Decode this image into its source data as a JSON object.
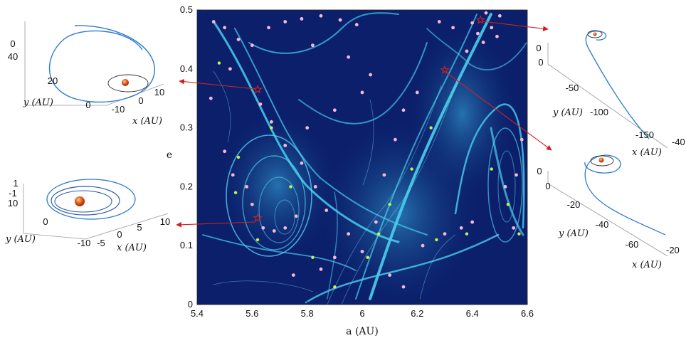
{
  "chart_data": [
    {
      "type": "heatmap",
      "xlabel": "a (AU)",
      "ylabel": "e",
      "xlim": [
        5.4,
        6.6
      ],
      "ylim": [
        0,
        0.5
      ],
      "xticks": [
        "5.4",
        "5.6",
        "5.8",
        "6",
        "6.2",
        "6.4",
        "6.6"
      ],
      "yticks": [
        "0",
        "0.1",
        "0.2",
        "0.3",
        "0.4",
        "0.5"
      ],
      "grid": false,
      "colors": {
        "background": "#0b1f6b",
        "ridge": "#4fd6f0",
        "pink_points": "#f6b8d6",
        "green_points": "#c6f24a",
        "arrows": "#d42020"
      },
      "highlighted_orbits": [
        {
          "a": 5.62,
          "e": 0.365
        },
        {
          "a": 5.62,
          "e": 0.147
        },
        {
          "a": 6.43,
          "e": 0.483
        },
        {
          "a": 6.3,
          "e": 0.398
        }
      ],
      "pink_points": [
        {
          "a": 5.46,
          "e": 0.48
        },
        {
          "a": 5.5,
          "e": 0.47
        },
        {
          "a": 5.55,
          "e": 0.45
        },
        {
          "a": 5.6,
          "e": 0.44
        },
        {
          "a": 5.66,
          "e": 0.47
        },
        {
          "a": 5.72,
          "e": 0.48
        },
        {
          "a": 5.78,
          "e": 0.485
        },
        {
          "a": 5.85,
          "e": 0.49
        },
        {
          "a": 5.92,
          "e": 0.483
        },
        {
          "a": 5.98,
          "e": 0.475
        },
        {
          "a": 5.82,
          "e": 0.44
        },
        {
          "a": 5.95,
          "e": 0.42
        },
        {
          "a": 6.42,
          "e": 0.46
        },
        {
          "a": 6.45,
          "e": 0.495
        },
        {
          "a": 6.47,
          "e": 0.47
        },
        {
          "a": 6.5,
          "e": 0.49
        },
        {
          "a": 6.4,
          "e": 0.478
        },
        {
          "a": 6.44,
          "e": 0.445
        },
        {
          "a": 6.38,
          "e": 0.43
        },
        {
          "a": 6.49,
          "e": 0.455
        },
        {
          "a": 6.28,
          "e": 0.48
        },
        {
          "a": 6.33,
          "e": 0.47
        },
        {
          "a": 5.63,
          "e": 0.34
        },
        {
          "a": 5.67,
          "e": 0.31
        },
        {
          "a": 5.72,
          "e": 0.27
        },
        {
          "a": 5.78,
          "e": 0.24
        },
        {
          "a": 5.8,
          "e": 0.3
        },
        {
          "a": 5.83,
          "e": 0.2
        },
        {
          "a": 5.87,
          "e": 0.16
        },
        {
          "a": 5.95,
          "e": 0.12
        },
        {
          "a": 5.5,
          "e": 0.26
        },
        {
          "a": 5.53,
          "e": 0.22
        },
        {
          "a": 5.58,
          "e": 0.2
        },
        {
          "a": 5.6,
          "e": 0.17
        },
        {
          "a": 5.64,
          "e": 0.13
        },
        {
          "a": 5.68,
          "e": 0.125
        },
        {
          "a": 5.72,
          "e": 0.13
        },
        {
          "a": 5.76,
          "e": 0.15
        },
        {
          "a": 5.75,
          "e": 0.05
        },
        {
          "a": 5.85,
          "e": 0.06
        },
        {
          "a": 5.9,
          "e": 0.08
        },
        {
          "a": 6.0,
          "e": 0.09
        },
        {
          "a": 6.05,
          "e": 0.14
        },
        {
          "a": 6.08,
          "e": 0.22
        },
        {
          "a": 6.12,
          "e": 0.28
        },
        {
          "a": 6.15,
          "e": 0.33
        },
        {
          "a": 6.2,
          "e": 0.36
        },
        {
          "a": 6.1,
          "e": 0.05
        },
        {
          "a": 6.15,
          "e": 0.03
        },
        {
          "a": 6.22,
          "e": 0.1
        },
        {
          "a": 6.3,
          "e": 0.12
        },
        {
          "a": 6.36,
          "e": 0.13
        },
        {
          "a": 6.4,
          "e": 0.14
        },
        {
          "a": 6.55,
          "e": 0.13
        },
        {
          "a": 6.52,
          "e": 0.2
        },
        {
          "a": 6.56,
          "e": 0.22
        },
        {
          "a": 6.58,
          "e": 0.28
        },
        {
          "a": 5.9,
          "e": 0.33
        },
        {
          "a": 6.0,
          "e": 0.36
        },
        {
          "a": 6.03,
          "e": 0.39
        },
        {
          "a": 5.45,
          "e": 0.35
        },
        {
          "a": 5.52,
          "e": 0.4
        }
      ],
      "green_points": [
        {
          "a": 5.48,
          "e": 0.41
        },
        {
          "a": 5.55,
          "e": 0.25
        },
        {
          "a": 5.54,
          "e": 0.19
        },
        {
          "a": 5.62,
          "e": 0.11
        },
        {
          "a": 5.67,
          "e": 0.3
        },
        {
          "a": 5.74,
          "e": 0.2
        },
        {
          "a": 5.82,
          "e": 0.08
        },
        {
          "a": 5.9,
          "e": 0.03
        },
        {
          "a": 6.02,
          "e": 0.08
        },
        {
          "a": 6.06,
          "e": 0.12
        },
        {
          "a": 6.1,
          "e": 0.17
        },
        {
          "a": 6.18,
          "e": 0.23
        },
        {
          "a": 6.27,
          "e": 0.11
        },
        {
          "a": 6.38,
          "e": 0.12
        },
        {
          "a": 6.57,
          "e": 0.12
        },
        {
          "a": 6.25,
          "e": 0.3
        },
        {
          "a": 6.47,
          "e": 0.23
        },
        {
          "a": 6.53,
          "e": 0.17
        }
      ]
    },
    {
      "type": "line",
      "panel": "top-left inset",
      "xlabel": "x (AU)",
      "ylabel": "y (AU)",
      "xticks": [
        "10",
        "0",
        "-10"
      ],
      "yticks": [
        "40",
        "20",
        "0"
      ],
      "zticks": [
        "0"
      ]
    },
    {
      "type": "line",
      "panel": "bottom-left inset",
      "xlabel": "x (AU)",
      "ylabel": "y (AU)",
      "xticks": [
        "10",
        "5",
        "0",
        "-5"
      ],
      "yticks": [
        "10",
        "0",
        "-10"
      ],
      "zticks": [
        "1",
        "-1"
      ]
    },
    {
      "type": "line",
      "panel": "top-right inset",
      "xlabel": "x (AU)",
      "ylabel": "y (AU)",
      "xticks": [
        "-40"
      ],
      "yticks": [
        "0",
        "-50",
        "-100",
        "-150"
      ],
      "zticks": [
        "0"
      ]
    },
    {
      "type": "line",
      "panel": "bottom-right inset",
      "xlabel": "x (AU)",
      "ylabel": "y (AU)",
      "xticks": [
        "-20"
      ],
      "yticks": [
        "0",
        "-20",
        "-40",
        "-60"
      ],
      "zticks": [
        "0"
      ]
    }
  ]
}
